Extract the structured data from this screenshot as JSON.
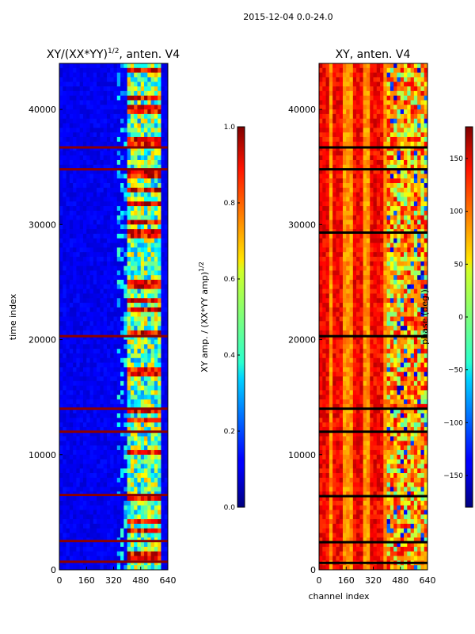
{
  "suptitle": "2015-12-04 0.0-24.0",
  "chart_data": [
    {
      "type": "heatmap",
      "title_main": "XY/(XX*YY)",
      "title_exp": "1/2",
      "title_tail": ", anten. V4",
      "xlabel": "",
      "ylabel": "time index",
      "xlim": [
        0,
        640
      ],
      "ylim": [
        0,
        44000
      ],
      "xticks": [
        0,
        160,
        320,
        480,
        640
      ],
      "yticks": [
        0,
        10000,
        20000,
        30000,
        40000
      ],
      "colormap": "jet",
      "colorbar": {
        "label_main": "XY amp. / (XX*YY amp)",
        "label_exp": "1/2",
        "range": [
          0.0,
          1.0
        ],
        "ticks": [
          0.0,
          0.2,
          0.4,
          0.6,
          0.8,
          1.0
        ],
        "tick_labels": [
          "0.0",
          "0.2",
          "0.4",
          "0.6",
          "0.8",
          "1.0"
        ]
      },
      "description_values": {
        "background_level": 0.08,
        "signal_channel_range": [
          400,
          600
        ],
        "signal_level": 0.6,
        "saturated_time_bands": [
          700,
          2500,
          6500,
          12000,
          14000,
          20300,
          34800,
          36700
        ]
      }
    },
    {
      "type": "heatmap",
      "title_main": "XY, anten. V4",
      "xlabel": "channel index",
      "ylabel": "",
      "xlim": [
        0,
        640
      ],
      "ylim": [
        0,
        44000
      ],
      "xticks": [
        0,
        160,
        320,
        480,
        640
      ],
      "yticks": [
        0,
        10000,
        20000,
        30000,
        40000
      ],
      "colormap": "jet",
      "colorbar": {
        "label_main": "phase (deg.)",
        "range": [
          -180,
          180
        ],
        "ticks": [
          -150,
          -100,
          -50,
          0,
          50,
          100,
          150
        ],
        "tick_labels": [
          "−150",
          "−100",
          "−50",
          "0",
          "50",
          "100",
          "150"
        ]
      },
      "description_values": {
        "stripe_channels": [
          20,
          115,
          230,
          340
        ],
        "black_time_lines": [
          600,
          2400,
          6400,
          12000,
          14000,
          20300,
          29300,
          34800,
          36700
        ]
      }
    }
  ]
}
